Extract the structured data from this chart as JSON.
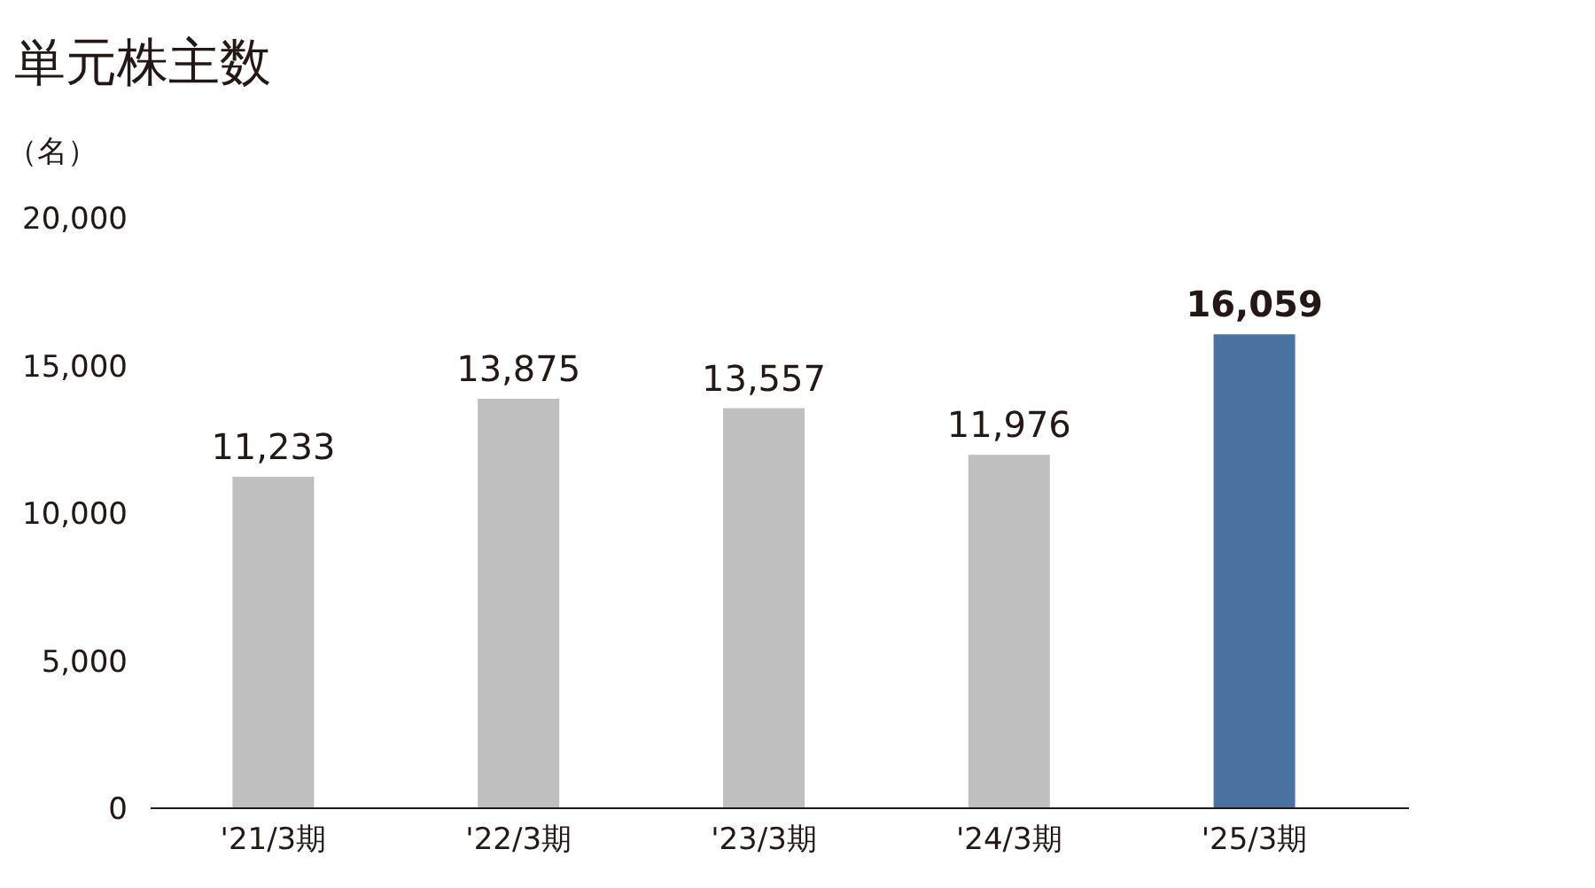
{
  "chart_data": {
    "type": "bar",
    "title": "単元株主数",
    "ylabel": "（名）",
    "categories": [
      "'21/3期",
      "'22/3期",
      "'23/3期",
      "'24/3期",
      "'25/3期"
    ],
    "values": [
      11233,
      13875,
      13557,
      11976,
      16059
    ],
    "value_labels": [
      "11,233",
      "13,875",
      "13,557",
      "11,976",
      "16,059"
    ],
    "colors": [
      "#bfbfbf",
      "#bfbfbf",
      "#bfbfbf",
      "#bfbfbf",
      "#4a72a0"
    ],
    "ylim": [
      0,
      20000
    ],
    "yticks": [
      0,
      {
        "value": 5000,
        "label": "5,000"
      },
      {
        "value": 10000,
        "label": "10,000"
      },
      {
        "value": 15000,
        "label": "15,000"
      },
      {
        "value": 20000,
        "label": "20,000"
      }
    ]
  }
}
